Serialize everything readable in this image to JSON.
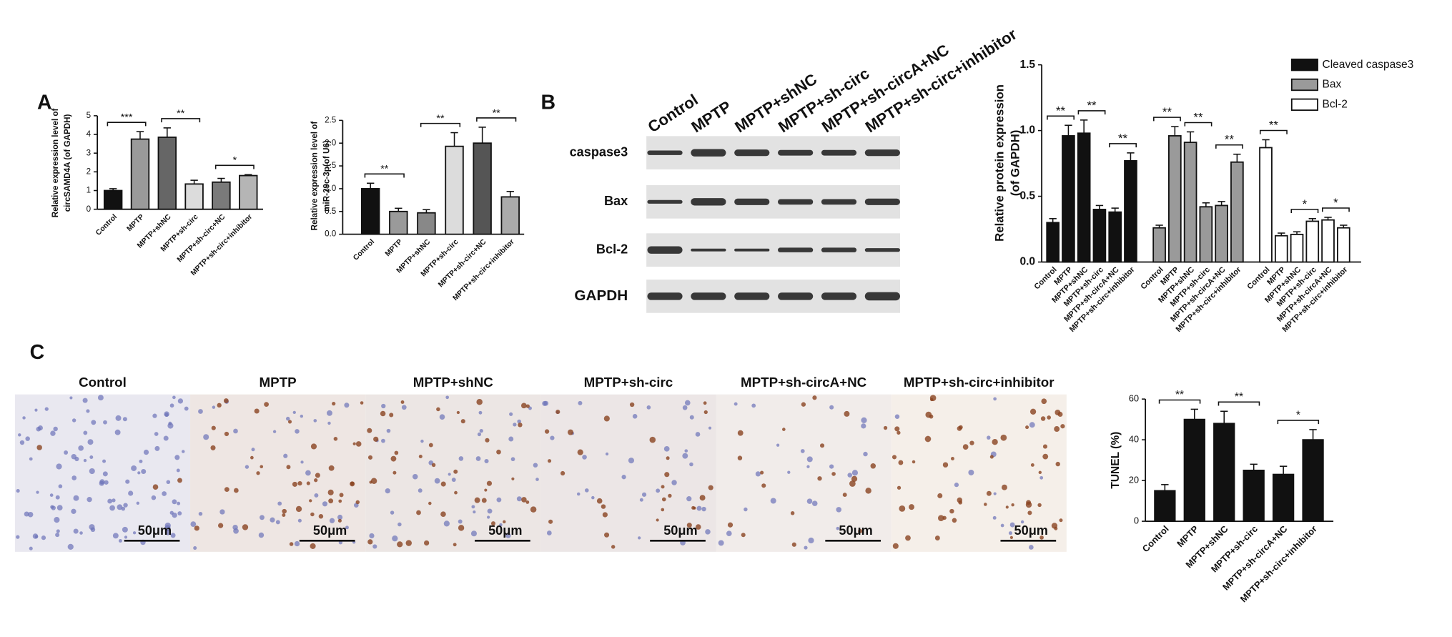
{
  "panels": [
    "A",
    "B",
    "C"
  ],
  "chart_data": [
    {
      "type": "bar",
      "ylabel": [
        "Relative expression level of",
        "circSAMD4A (of GAPDH)"
      ],
      "categories": [
        "Control",
        "MPTP",
        "MPTP+shNC",
        "MPTP+sh-circ",
        "MPTP+sh-circ+NC",
        "MPTP+sh-circ+inhibitor"
      ],
      "values": [
        1.0,
        3.75,
        3.85,
        1.35,
        1.45,
        1.8
      ],
      "errors": [
        0.1,
        0.4,
        0.5,
        0.2,
        0.2,
        0.05
      ],
      "colors": [
        "#111111",
        "#9a9a9a",
        "#666666",
        "#dcdcdc",
        "#7a7a7a",
        "#b5b5b5"
      ],
      "significance": [
        "***",
        "**",
        "*"
      ],
      "ylim": [
        0,
        5
      ],
      "yticks": [
        0,
        1,
        2,
        3,
        4,
        5
      ]
    },
    {
      "type": "bar",
      "ylabel": [
        "Relative expression level of",
        "miR-29c-3p(of U6)"
      ],
      "categories": [
        "Control",
        "MPTP",
        "MPTP+shNC",
        "MPTP+sh-circ",
        "MPTP+sh-circ+NC",
        "MPTP+sh-circ+inhibitor"
      ],
      "values": [
        1.0,
        0.5,
        0.47,
        1.93,
        2.0,
        0.82
      ],
      "errors": [
        0.12,
        0.07,
        0.07,
        0.3,
        0.35,
        0.12
      ],
      "colors": [
        "#111111",
        "#9a9a9a",
        "#888888",
        "#dcdcdc",
        "#555555",
        "#aaaaaa"
      ],
      "significance": [
        "**",
        "**",
        "**"
      ],
      "ylim": [
        0,
        2.5
      ],
      "yticks": [
        {
          "value": 0,
          "label": "0.0"
        },
        0.5,
        {
          "value": 1,
          "label": "1.0"
        },
        1.5,
        {
          "value": 2,
          "label": "2.0"
        },
        2.5
      ]
    },
    {
      "type": "grouped-bar",
      "ylabel": [
        "Relative protein expression",
        "(of GAPDH)"
      ],
      "categories": [
        "Control",
        "MPTP",
        "MPTP+shNC",
        "MPTP+sh-circ",
        "MPTP+sh-circA+NC",
        "MPTP+sh-circ+inhibitor"
      ],
      "series": [
        {
          "name": "Cleaved caspase3",
          "color": "#111111",
          "values": [
            0.3,
            0.96,
            0.98,
            0.4,
            0.38,
            0.77
          ],
          "errors": [
            0.03,
            0.08,
            0.1,
            0.03,
            0.03,
            0.06
          ],
          "significance": [
            "**",
            "**",
            "**"
          ]
        },
        {
          "name": "Bax",
          "color": "#9a9a9a",
          "values": [
            0.26,
            0.96,
            0.91,
            0.42,
            0.43,
            0.76
          ],
          "errors": [
            0.02,
            0.07,
            0.08,
            0.03,
            0.03,
            0.06
          ],
          "significance": [
            "**",
            "**",
            "**"
          ]
        },
        {
          "name": "Bcl-2",
          "color": "#ffffff",
          "values": [
            0.87,
            0.2,
            0.21,
            0.31,
            0.32,
            0.26
          ],
          "errors": [
            0.06,
            0.02,
            0.02,
            0.02,
            0.02,
            0.02
          ],
          "significance": [
            "**",
            "*",
            "*"
          ]
        }
      ],
      "ylim": [
        0,
        1.5
      ],
      "yticks": [
        {
          "value": 0,
          "label": "0.0"
        },
        0.5,
        {
          "value": 1,
          "label": "1.0"
        },
        1.5
      ],
      "legend": "top-right"
    },
    {
      "type": "bar",
      "ylabel": [
        "TUNEL (%)"
      ],
      "categories": [
        "Control",
        "MPTP",
        "MPTP+shNC",
        "MPTP+sh-circ",
        "MPTP+sh-circA+NC",
        "MPTP+sh-circ+inhibitor"
      ],
      "values": [
        15,
        50,
        48,
        25,
        23,
        40
      ],
      "errors": [
        3,
        5,
        6,
        3,
        4,
        5
      ],
      "colors": [
        "#111111",
        "#111111",
        "#111111",
        "#111111",
        "#111111",
        "#111111"
      ],
      "significance": [
        "**",
        "**",
        "*"
      ],
      "ylim": [
        0,
        60
      ],
      "yticks": [
        0,
        20,
        40,
        60
      ]
    }
  ],
  "blot": {
    "lanes": [
      "Control",
      "MPTP",
      "MPTP+shNC",
      "MPTP+sh-circ",
      "MPTP+sh-circA+NC",
      "MPTP+sh-circ+inhibitor"
    ],
    "rows": [
      "caspase3",
      "Bax",
      "Bcl-2",
      "GAPDH"
    ]
  },
  "histology": {
    "groups": [
      "Control",
      "MPTP",
      "MPTP+shNC",
      "MPTP+sh-circ",
      "MPTP+sh-circA+NC",
      "MPTP+sh-circ+inhibitor"
    ],
    "scale_bar": "50μm"
  }
}
